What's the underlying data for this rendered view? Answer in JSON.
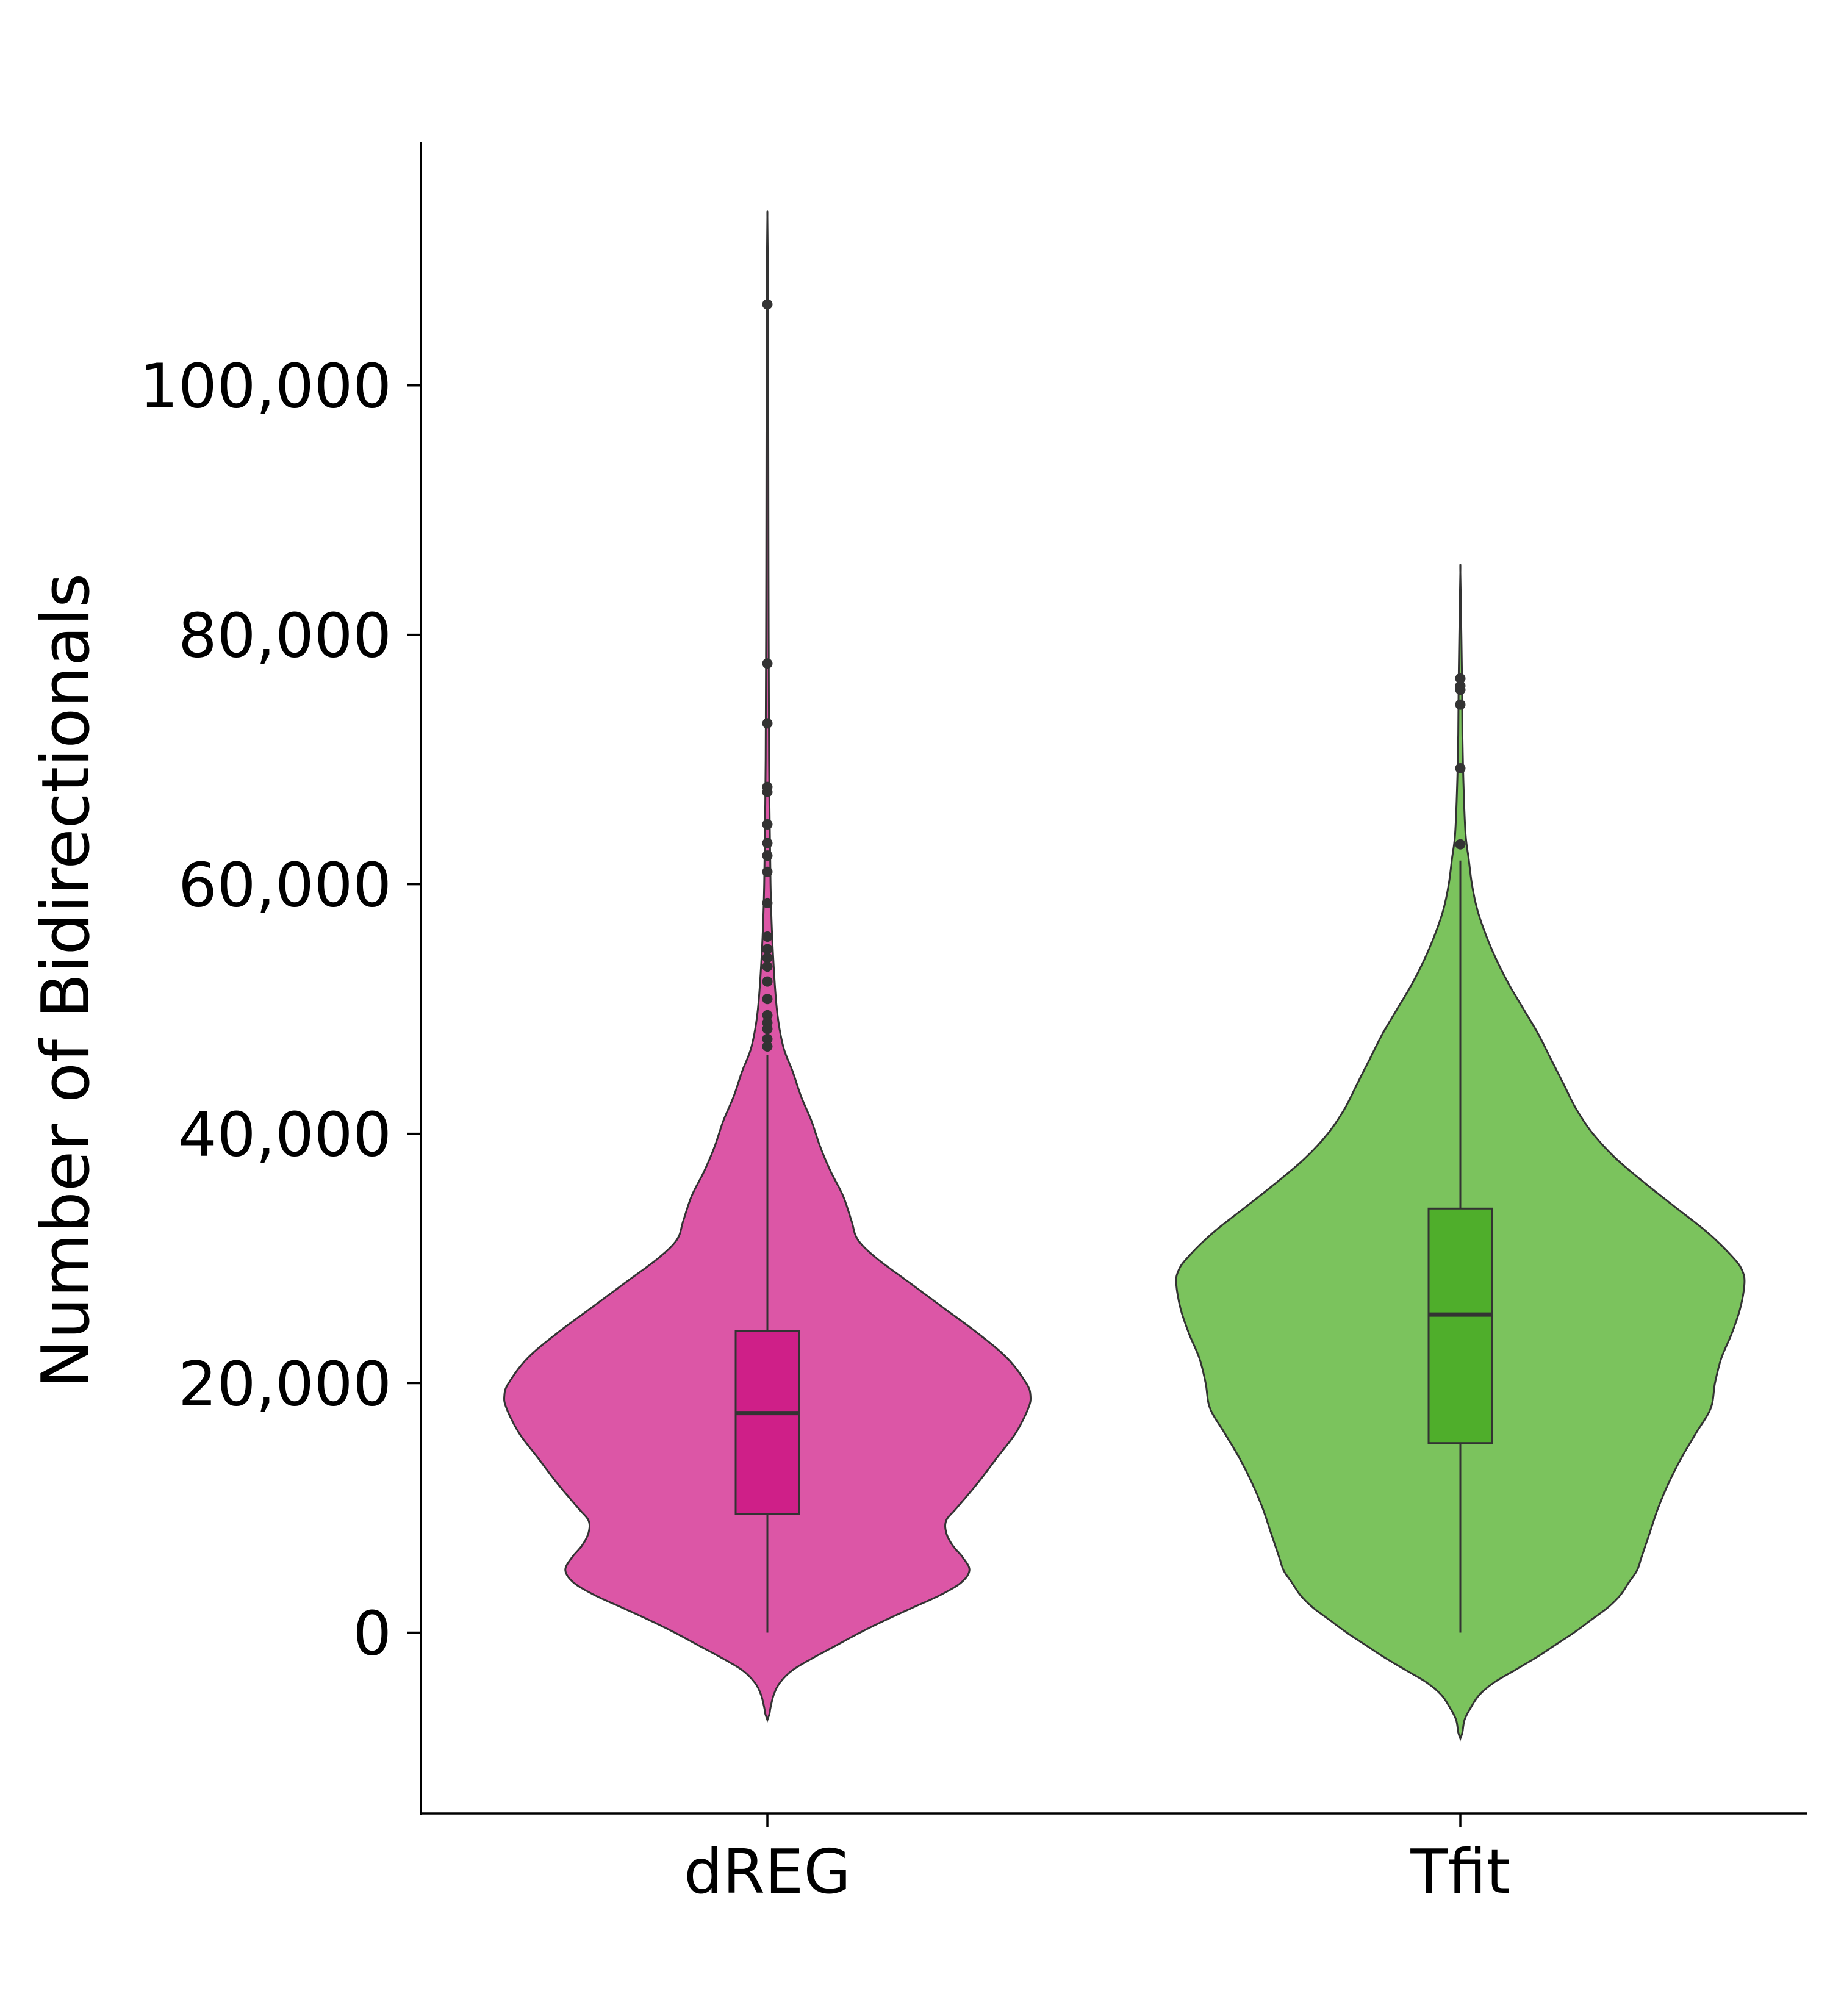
{
  "chart_data": {
    "type": "violin",
    "title": "",
    "xlabel": "",
    "ylabel": "Number of Bidirectionals",
    "ylim": [
      -14500,
      119500
    ],
    "y_ticks": [
      0,
      20000,
      40000,
      60000,
      80000,
      100000
    ],
    "y_tick_labels": [
      "0",
      "20,000",
      "40,000",
      "60,000",
      "80,000",
      "100,000"
    ],
    "grid": false,
    "legend": "none",
    "categories": [
      "dREG",
      "Tfit"
    ],
    "series": [
      {
        "category": "dREG",
        "violin_color": "#dc56a6",
        "box_color": "#cf1f88",
        "edge_color": "#333333",
        "box": {
          "q1": 9500,
          "median": 17600,
          "q3": 24200,
          "whisker_low": 0,
          "whisker_high": 46300
        },
        "outliers": [
          106500,
          77700,
          72900,
          67800,
          67400,
          64800,
          63300,
          62300,
          61000,
          58500,
          55800,
          54800,
          54100,
          53400,
          52200,
          50800,
          49500,
          48900,
          48400,
          47600,
          47000
        ],
        "density": [
          [
            -7000,
            0.0
          ],
          [
            -6500,
            0.01
          ],
          [
            -6000,
            0.015
          ],
          [
            -5000,
            0.03
          ],
          [
            -4000,
            0.06
          ],
          [
            -3000,
            0.12
          ],
          [
            -2000,
            0.22
          ],
          [
            -1000,
            0.33
          ],
          [
            0,
            0.44
          ],
          [
            1000,
            0.56
          ],
          [
            2000,
            0.69
          ],
          [
            3000,
            0.82
          ],
          [
            4000,
            0.92
          ],
          [
            5000,
            0.96
          ],
          [
            6000,
            0.93
          ],
          [
            7000,
            0.88
          ],
          [
            8000,
            0.85
          ],
          [
            9000,
            0.85
          ],
          [
            10000,
            0.9
          ],
          [
            12000,
            1.0
          ],
          [
            14000,
            1.09
          ],
          [
            16000,
            1.18
          ],
          [
            18000,
            1.24
          ],
          [
            19000,
            1.25
          ],
          [
            20000,
            1.23
          ],
          [
            22000,
            1.14
          ],
          [
            24000,
            1.0
          ],
          [
            26000,
            0.84
          ],
          [
            28000,
            0.68
          ],
          [
            30000,
            0.52
          ],
          [
            31500,
            0.43
          ],
          [
            33000,
            0.4
          ],
          [
            35000,
            0.36
          ],
          [
            37000,
            0.3
          ],
          [
            39000,
            0.25
          ],
          [
            41000,
            0.21
          ],
          [
            43000,
            0.16
          ],
          [
            45000,
            0.12
          ],
          [
            47000,
            0.075
          ],
          [
            50000,
            0.045
          ],
          [
            55000,
            0.025
          ],
          [
            60000,
            0.015
          ],
          [
            70000,
            0.008
          ],
          [
            80000,
            0.006
          ],
          [
            90000,
            0.005
          ],
          [
            100000,
            0.004
          ],
          [
            107000,
            0.003
          ],
          [
            110000,
            0.002
          ],
          [
            113500,
            0.0
          ]
        ]
      },
      {
        "category": "Tfit",
        "violin_color": "#7bc35d",
        "box_color": "#4fae2b",
        "edge_color": "#333333",
        "box": {
          "q1": 15200,
          "median": 25500,
          "q3": 34000,
          "whisker_low": 0,
          "whisker_high": 61900
        },
        "outliers": [
          76500,
          75900,
          75600,
          74400,
          69300,
          63200
        ],
        "density": [
          [
            -8500,
            0.0
          ],
          [
            -8000,
            0.01
          ],
          [
            -7000,
            0.02
          ],
          [
            -6000,
            0.05
          ],
          [
            -5000,
            0.09
          ],
          [
            -4000,
            0.16
          ],
          [
            -3000,
            0.26
          ],
          [
            -2000,
            0.36
          ],
          [
            -1000,
            0.45
          ],
          [
            0,
            0.54
          ],
          [
            1000,
            0.62
          ],
          [
            2000,
            0.7
          ],
          [
            3000,
            0.76
          ],
          [
            4000,
            0.8
          ],
          [
            5000,
            0.84
          ],
          [
            6000,
            0.86
          ],
          [
            8000,
            0.9
          ],
          [
            10000,
            0.94
          ],
          [
            12000,
            0.99
          ],
          [
            14000,
            1.05
          ],
          [
            16000,
            1.12
          ],
          [
            18000,
            1.19
          ],
          [
            20000,
            1.21
          ],
          [
            22000,
            1.24
          ],
          [
            24000,
            1.29
          ],
          [
            26000,
            1.33
          ],
          [
            28000,
            1.35
          ],
          [
            29000,
            1.34
          ],
          [
            30000,
            1.3
          ],
          [
            32000,
            1.18
          ],
          [
            34000,
            1.03
          ],
          [
            36000,
            0.88
          ],
          [
            38000,
            0.74
          ],
          [
            40000,
            0.63
          ],
          [
            42000,
            0.55
          ],
          [
            44000,
            0.49
          ],
          [
            46000,
            0.43
          ],
          [
            48000,
            0.37
          ],
          [
            50000,
            0.3
          ],
          [
            52000,
            0.23
          ],
          [
            54000,
            0.17
          ],
          [
            56000,
            0.12
          ],
          [
            58000,
            0.08
          ],
          [
            60000,
            0.055
          ],
          [
            62000,
            0.04
          ],
          [
            64000,
            0.025
          ],
          [
            68000,
            0.015
          ],
          [
            72000,
            0.01
          ],
          [
            76000,
            0.008
          ],
          [
            80000,
            0.005
          ],
          [
            85000,
            0.0
          ]
        ]
      }
    ]
  }
}
